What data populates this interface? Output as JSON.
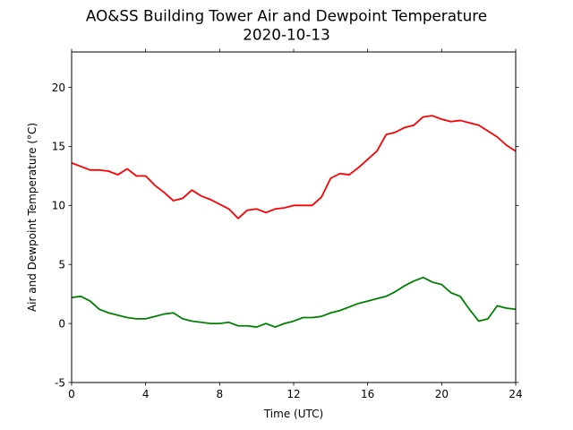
{
  "chart_data": {
    "type": "line",
    "title": "AO&SS Building Tower Air and Dewpoint Temperature",
    "subtitle": "2020-10-13",
    "xlabel": "Time (UTC)",
    "ylabel": "Air and Dewpoint Temperature (°C)",
    "xlim": [
      0,
      24
    ],
    "ylim": [
      -5,
      23
    ],
    "xticks": [
      0,
      4,
      8,
      12,
      16,
      20,
      24
    ],
    "yticks": [
      -5,
      0,
      5,
      10,
      15,
      20
    ],
    "grid": false,
    "legend": false,
    "series": [
      {
        "color": "#ff0000",
        "x": [
          0,
          0.5,
          1,
          1.5,
          2,
          2.5,
          3,
          3.5,
          4,
          4.5,
          5,
          5.5,
          6,
          6.5,
          7,
          7.5,
          8,
          8.5,
          9,
          9.5,
          10,
          10.5,
          11,
          11.5,
          12,
          12.5,
          13,
          13.5,
          14,
          14.5,
          15,
          15.5,
          16,
          16.5,
          17,
          17.5,
          18,
          18.5,
          19,
          19.5,
          20,
          20.5,
          21,
          21.5,
          22,
          22.5,
          23,
          23.5,
          24
        ],
        "y": [
          13.6,
          13.3,
          13.0,
          13.0,
          12.9,
          12.6,
          13.1,
          12.5,
          12.5,
          11.7,
          11.1,
          10.4,
          10.6,
          11.3,
          10.8,
          10.5,
          10.1,
          9.7,
          8.9,
          9.6,
          9.7,
          9.4,
          9.7,
          9.8,
          10.0,
          10.0,
          10.0,
          10.7,
          12.3,
          12.7,
          12.6,
          13.2,
          13.9,
          14.6,
          16.0,
          16.2,
          16.6,
          16.8,
          17.5,
          17.6,
          17.3,
          17.1,
          17.2,
          17.0,
          16.8,
          16.3,
          15.8,
          15.1,
          14.6
        ]
      },
      {
        "color": "#008000",
        "x": [
          0,
          0.5,
          1,
          1.5,
          2,
          2.5,
          3,
          3.5,
          4,
          4.5,
          5,
          5.5,
          6,
          6.5,
          7,
          7.5,
          8,
          8.5,
          9,
          9.5,
          10,
          10.5,
          11,
          11.5,
          12,
          12.5,
          13,
          13.5,
          14,
          14.5,
          15,
          15.5,
          16,
          16.5,
          17,
          17.5,
          18,
          18.5,
          19,
          19.5,
          20,
          20.5,
          21,
          21.5,
          22,
          22.5,
          23,
          23.5,
          24
        ],
        "y": [
          2.2,
          2.3,
          1.9,
          1.2,
          0.9,
          0.7,
          0.5,
          0.4,
          0.4,
          0.6,
          0.8,
          0.9,
          0.4,
          0.2,
          0.1,
          0.0,
          0.0,
          0.1,
          -0.2,
          -0.2,
          -0.3,
          0.0,
          -0.3,
          0.0,
          0.2,
          0.5,
          0.5,
          0.6,
          0.9,
          1.1,
          1.4,
          1.7,
          1.9,
          2.1,
          2.3,
          2.7,
          3.2,
          3.6,
          3.9,
          3.5,
          3.3,
          2.6,
          2.3,
          1.2,
          0.2,
          0.4,
          1.5,
          1.3,
          1.2
        ]
      }
    ]
  }
}
